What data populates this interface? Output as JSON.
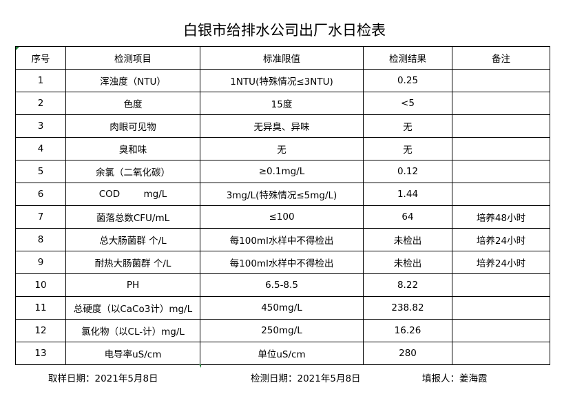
{
  "title": "白银市给排水公司出厂水日检表",
  "headers": [
    "序号",
    "检测项目",
    "标准限值",
    "检测结果",
    "备注"
  ],
  "rows": [
    [
      "1",
      "浑浊度（NTU）",
      "1NTU(特殊情况≤3NTU)",
      "0.25",
      ""
    ],
    [
      "2",
      "色度",
      "15度",
      "<5",
      ""
    ],
    [
      "3",
      "肉眼可见物",
      "无异臭、异味",
      "无",
      ""
    ],
    [
      "4",
      "臭和味",
      "无",
      "无",
      ""
    ],
    [
      "5",
      "余氯（二氧化碳）",
      "≥0.1mg/L",
      "0.12",
      ""
    ],
    [
      "6",
      "COD        mg/L",
      "3mg/L(特殊情况≤5mg/L)",
      "1.44",
      ""
    ],
    [
      "7",
      "菌落总数CFU/mL",
      "≤100",
      "64",
      "培养48小时"
    ],
    [
      "8",
      "总大肠菌群 个/L",
      "每100ml水样中不得检出",
      "未检出",
      "培养24小时"
    ],
    [
      "9",
      "耐热大肠菌群 个/L",
      "每100ml水样中不得检出",
      "未检出",
      "培养24小时"
    ],
    [
      "10",
      "PH",
      "6.5-8.5",
      "8.22",
      ""
    ],
    [
      "11",
      "总硬度（以CaCo3计）mg/L",
      "450mg/L",
      "238.82",
      ""
    ],
    [
      "12",
      "氯化物（以CL-计）mg/L",
      "250mg/L",
      "16.26",
      ""
    ],
    [
      "13",
      "电导率uS/cm",
      "单位uS/cm",
      "280",
      ""
    ]
  ],
  "footer": {
    "sample_date": "取样日期：2021年5月8日",
    "test_date": "检测日期：2021年5月8日",
    "reporter": "填报人：姜海霞"
  },
  "colors": {
    "cell_marker": "#1e7b34"
  }
}
